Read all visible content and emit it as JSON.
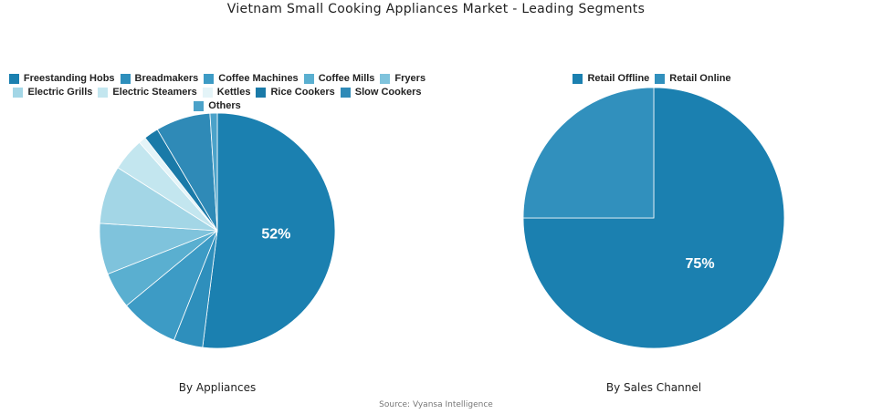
{
  "title": "Vietnam Small Cooking Appliances Market - Leading Segments",
  "source": "Source: Vyansa Intelligence",
  "chart_data": [
    {
      "type": "pie",
      "subtitle": "By Appliances",
      "legend_position": "top",
      "slices": [
        {
          "label": "Freestanding Hobs",
          "value": 52,
          "color": "#1b80b0",
          "show_label": "52%"
        },
        {
          "label": "Breadmakers",
          "value": 4,
          "color": "#2e8fbc"
        },
        {
          "label": "Coffee Machines",
          "value": 8,
          "color": "#3d9bc5"
        },
        {
          "label": "Coffee Mills",
          "value": 5,
          "color": "#5aafd0"
        },
        {
          "label": "Fryers",
          "value": 7,
          "color": "#7fc3dc"
        },
        {
          "label": "Electric Grills",
          "value": 8,
          "color": "#a3d6e6"
        },
        {
          "label": "Electric Steamers",
          "value": 4.5,
          "color": "#c3e6ef"
        },
        {
          "label": "Kettles",
          "value": 1,
          "color": "#e4f4f8"
        },
        {
          "label": "Rice Cookers",
          "value": 2,
          "color": "#1a7aa8"
        },
        {
          "label": "Slow Cookers",
          "value": 7.5,
          "color": "#2f8ab7"
        },
        {
          "label": "Others",
          "value": 1,
          "color": "#4ba2c9"
        }
      ]
    },
    {
      "type": "pie",
      "subtitle": "By Sales Channel",
      "legend_position": "top",
      "slices": [
        {
          "label": "Retail Offline",
          "value": 75,
          "color": "#1b80b0",
          "show_label": "75%"
        },
        {
          "label": "Retail Online",
          "value": 25,
          "color": "#3190bd"
        }
      ]
    }
  ]
}
